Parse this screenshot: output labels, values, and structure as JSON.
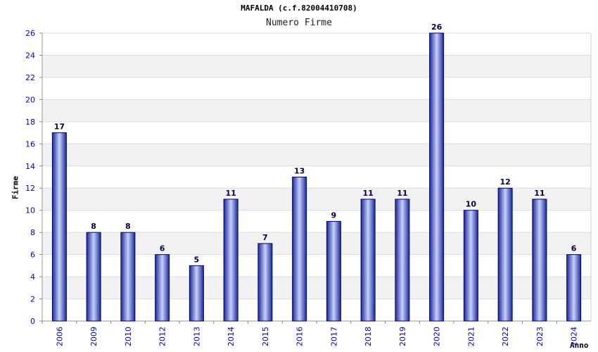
{
  "chart_data": {
    "type": "bar",
    "title": "MAFALDA (c.f.82004410708)",
    "subtitle": "Numero Firme",
    "ylabel": "Firme",
    "xlabel": "Anno",
    "categories": [
      "2006",
      "2009",
      "2010",
      "2012",
      "2013",
      "2014",
      "2015",
      "2016",
      "2017",
      "2018",
      "2019",
      "2020",
      "2021",
      "2022",
      "2023",
      "2024"
    ],
    "values": [
      17,
      8,
      8,
      6,
      5,
      11,
      7,
      13,
      9,
      11,
      11,
      26,
      10,
      12,
      11,
      6
    ],
    "ylim": [
      0,
      26
    ],
    "yticks": [
      0,
      2,
      4,
      6,
      8,
      10,
      12,
      14,
      16,
      18,
      20,
      22,
      24,
      26
    ],
    "grid": true,
    "colors": {
      "bar_edge": "#000080",
      "bar_light": "#c8d0ff",
      "bar_mid": "#3a4cc0",
      "tick_label": "#0000cc",
      "value_label": "#000040",
      "band": "#f2f2f2",
      "grid": "#dddddd"
    }
  }
}
